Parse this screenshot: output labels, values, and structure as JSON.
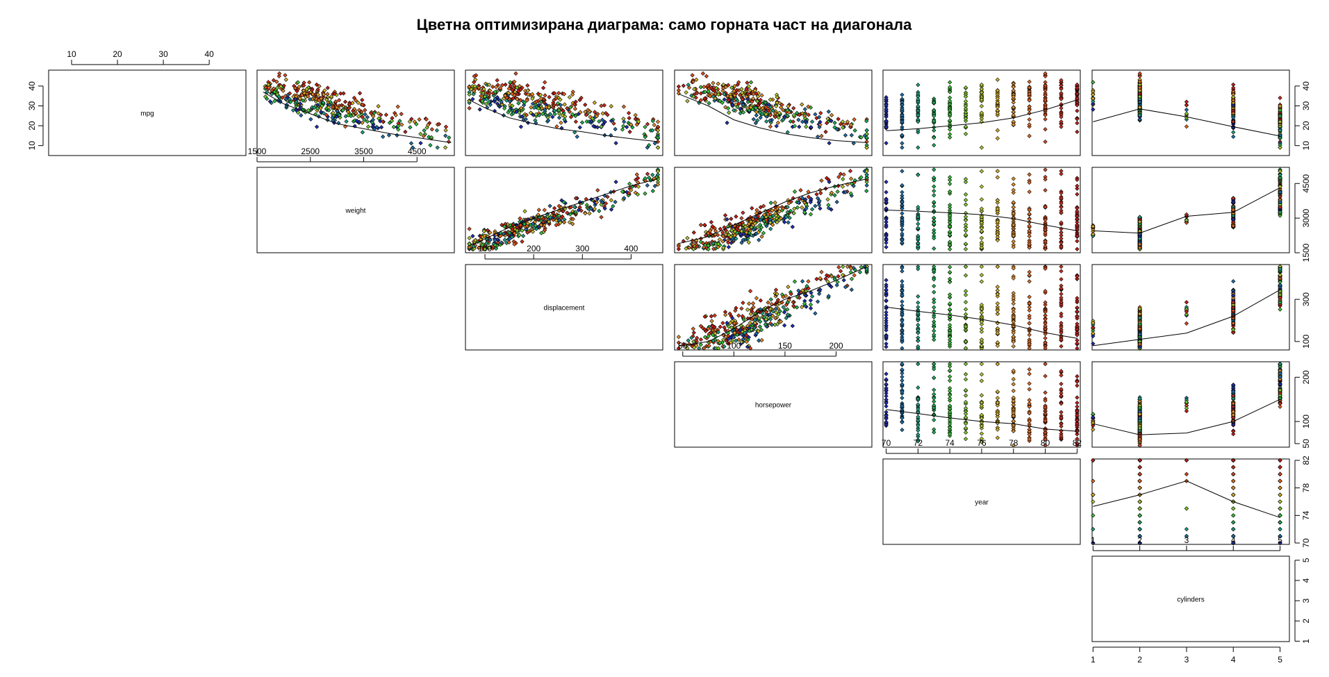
{
  "chart_data": {
    "type": "scatter",
    "title": "Цветна оптимизирана диаграма: само горната част на диагонала",
    "variables": [
      "mpg",
      "weight",
      "displacement",
      "horsepower",
      "year",
      "cylinders"
    ],
    "axes": {
      "mpg": {
        "range": [
          5,
          48
        ],
        "ticks": [
          10,
          20,
          30,
          40
        ],
        "tick_labels": [
          "10",
          "20",
          "30",
          "40"
        ]
      },
      "weight": {
        "range": [
          1500,
          5200
        ],
        "ticks": [
          1500,
          2500,
          3500,
          4500
        ],
        "tick_labels": [
          "1500",
          "2500",
          "3500",
          "4500"
        ],
        "right_ticks": [
          1500,
          3000,
          4500
        ],
        "right_tick_labels": [
          "1500",
          "3000",
          "4500"
        ]
      },
      "displacement": {
        "range": [
          60,
          465
        ],
        "ticks": [
          100,
          200,
          300,
          400
        ],
        "tick_labels": [
          "100",
          "200",
          "300",
          "400"
        ],
        "right_ticks": [
          100,
          300
        ],
        "right_tick_labels": [
          "100",
          "300"
        ]
      },
      "horsepower": {
        "range": [
          42,
          235
        ],
        "ticks": [
          50,
          100,
          150,
          200
        ],
        "tick_labels": [
          "50",
          "100",
          "150",
          "200"
        ],
        "right_ticks": [
          50,
          100,
          200
        ],
        "right_tick_labels": [
          "50",
          "100",
          "200"
        ]
      },
      "year": {
        "range": [
          69.8,
          82.2
        ],
        "ticks": [
          70,
          72,
          74,
          76,
          78,
          80,
          82
        ],
        "tick_labels": [
          "70",
          "72",
          "74",
          "76",
          "78",
          "80",
          "82"
        ],
        "right_ticks": [
          70,
          74,
          78,
          82
        ],
        "right_tick_labels": [
          "70",
          "74",
          "78",
          "82"
        ]
      },
      "cylinders": {
        "range": [
          0.98,
          5.2
        ],
        "ticks": [
          1,
          2,
          3,
          4,
          5
        ],
        "tick_labels": [
          "1",
          "2",
          "3",
          "4",
          "5"
        ]
      }
    },
    "color_by": "year",
    "year_palette": [
      "#1f2fb0",
      "#1f6fa8",
      "#1fa080",
      "#1fb050",
      "#3cc23c",
      "#7ccb2e",
      "#b8c82a",
      "#d6b02a",
      "#e0902a",
      "#e26a22",
      "#d84a1e",
      "#cc2f1c",
      "#c41e18"
    ],
    "smooth": {
      "weight": [
        [
          1613,
          37
        ],
        [
          2000,
          31
        ],
        [
          2500,
          26
        ],
        [
          3000,
          21
        ],
        [
          3500,
          18.5
        ],
        [
          4000,
          16
        ],
        [
          4500,
          14
        ],
        [
          5140,
          11.5
        ]
      ],
      "displacement": [
        [
          68,
          33
        ],
        [
          100,
          29
        ],
        [
          150,
          24
        ],
        [
          200,
          21
        ],
        [
          250,
          18.5
        ],
        [
          300,
          17
        ],
        [
          350,
          15
        ],
        [
          400,
          13.5
        ],
        [
          455,
          12
        ]
      ],
      "horsepower": [
        [
          46,
          36
        ],
        [
          75,
          30
        ],
        [
          100,
          23
        ],
        [
          125,
          19
        ],
        [
          150,
          16
        ],
        [
          175,
          14
        ],
        [
          200,
          12.5
        ],
        [
          230,
          11.5
        ]
      ],
      "year": [
        [
          70,
          17.5
        ],
        [
          72,
          18.5
        ],
        [
          74,
          20
        ],
        [
          76,
          21.5
        ],
        [
          78,
          24
        ],
        [
          80,
          28
        ],
        [
          82,
          33
        ]
      ],
      "cylinders": [
        [
          1,
          22
        ],
        [
          2,
          28.5
        ],
        [
          3,
          24.5
        ],
        [
          4,
          19.5
        ],
        [
          5,
          14.8
        ]
      ],
      "displacement_vs_weight": [
        [
          68,
          1800
        ],
        [
          100,
          2100
        ],
        [
          150,
          2600
        ],
        [
          200,
          3000
        ],
        [
          250,
          3350
        ],
        [
          300,
          3700
        ],
        [
          350,
          4050
        ],
        [
          400,
          4400
        ],
        [
          455,
          4700
        ]
      ],
      "horsepower_vs_weight": [
        [
          46,
          1900
        ],
        [
          75,
          2200
        ],
        [
          100,
          2700
        ],
        [
          125,
          3200
        ],
        [
          150,
          3700
        ],
        [
          175,
          4100
        ],
        [
          200,
          4400
        ],
        [
          230,
          4700
        ]
      ],
      "year_vs_weight": [
        [
          70,
          3350
        ],
        [
          72,
          3300
        ],
        [
          74,
          3230
        ],
        [
          76,
          3150
        ],
        [
          78,
          2980
        ],
        [
          80,
          2700
        ],
        [
          82,
          2450
        ]
      ],
      "cylinders_vs_weight": [
        [
          1,
          2450
        ],
        [
          2,
          2350
        ],
        [
          3,
          3080
        ],
        [
          4,
          3250
        ],
        [
          5,
          4320
        ]
      ],
      "horsepower_vs_displacement": [
        [
          46,
          78
        ],
        [
          75,
          100
        ],
        [
          100,
          160
        ],
        [
          125,
          240
        ],
        [
          150,
          300
        ],
        [
          175,
          340
        ],
        [
          200,
          390
        ],
        [
          230,
          455
        ]
      ],
      "year_vs_displacement": [
        [
          70,
          263
        ],
        [
          72,
          243
        ],
        [
          74,
          226
        ],
        [
          76,
          205
        ],
        [
          78,
          178
        ],
        [
          80,
          142
        ],
        [
          82,
          115
        ]
      ],
      "cylinders_vs_displacement": [
        [
          1,
          80
        ],
        [
          2,
          110
        ],
        [
          3,
          140
        ],
        [
          4,
          220
        ],
        [
          5,
          345
        ]
      ],
      "year_vs_horsepower": [
        [
          70,
          127
        ],
        [
          72,
          118
        ],
        [
          74,
          108
        ],
        [
          76,
          100
        ],
        [
          78,
          95
        ],
        [
          80,
          83
        ],
        [
          82,
          78
        ]
      ],
      "cylinders_vs_horsepower": [
        [
          1,
          95
        ],
        [
          2,
          70
        ],
        [
          3,
          74
        ],
        [
          4,
          100
        ],
        [
          5,
          150
        ]
      ],
      "cylinders_vs_year": [
        [
          1,
          75.3
        ],
        [
          2,
          77
        ],
        [
          3,
          79
        ],
        [
          4,
          76
        ],
        [
          5,
          73.7
        ]
      ]
    }
  }
}
